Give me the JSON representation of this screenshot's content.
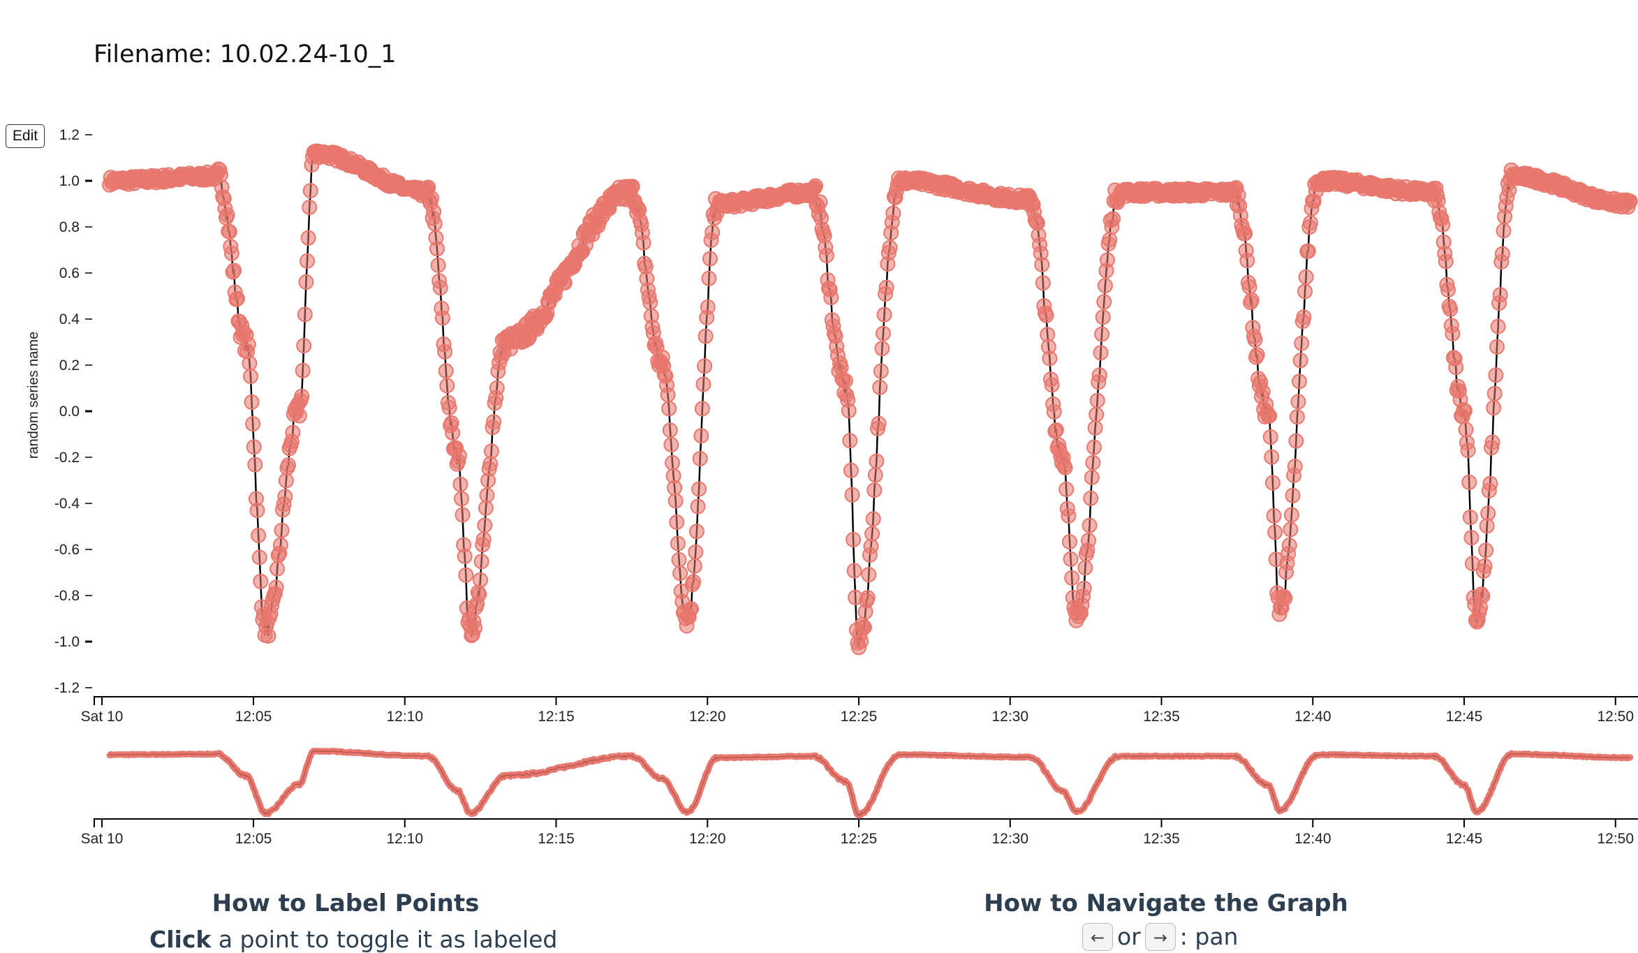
{
  "filename_label": "Filename: 10.02.24-10_1",
  "edit_label": "Edit",
  "help": {
    "label_title": "How to Label Points",
    "label_bold": "Click",
    "label_text": " a point to toggle it as labeled",
    "nav_title": "How to Navigate the Graph",
    "nav_key_left": "←",
    "nav_or": "or",
    "nav_key_right": "→",
    "nav_action": ": pan"
  },
  "colors": {
    "point": "#e8776e",
    "line": "#000000",
    "axis": "#000000"
  },
  "chart_data": [
    {
      "type": "scatter",
      "title": "",
      "xlabel": "",
      "ylabel": "random series name",
      "ylim": [
        -1.2,
        1.2
      ],
      "yticks": [
        "1.2",
        "1.0",
        "0.8",
        "0.6",
        "0.4",
        "0.2",
        "0.0",
        "-0.2",
        "-0.4",
        "-0.6",
        "-0.8",
        "-1.0",
        "-1.2"
      ],
      "xlim": [
        "12:00:15",
        "12:50:30"
      ],
      "xticks": [
        "Sat 10",
        "12:05",
        "12:10",
        "12:15",
        "12:20",
        "12:25",
        "12:30",
        "12:35",
        "12:40",
        "12:45",
        "12:50"
      ],
      "series_anchor_points": {
        "x": [
          "12:00:15",
          "12:03:50",
          "12:04:45",
          "12:05:25",
          "12:06:30",
          "12:07:00",
          "12:10:45",
          "12:11:45",
          "12:12:10",
          "12:13:20",
          "12:17:30",
          "12:18:30",
          "12:19:20",
          "12:20:20",
          "12:23:30",
          "12:24:35",
          "12:25:00",
          "12:26:20",
          "12:30:40",
          "12:31:45",
          "12:32:10",
          "12:33:35",
          "12:37:25",
          "12:38:30",
          "12:38:55",
          "12:40:10",
          "12:44:00",
          "12:45:00",
          "12:45:25",
          "12:46:35",
          "12:50:30"
        ],
        "y": [
          1.0,
          1.02,
          0.3,
          -0.95,
          0.0,
          1.12,
          0.95,
          -0.2,
          -0.95,
          0.3,
          0.95,
          0.2,
          -0.9,
          0.9,
          0.95,
          0.1,
          -1.0,
          1.0,
          0.92,
          -0.2,
          -0.9,
          0.95,
          0.95,
          0.0,
          -0.85,
          1.0,
          0.95,
          0.0,
          -0.9,
          1.02,
          0.9
        ]
      }
    },
    {
      "type": "line",
      "title": "",
      "role": "overview",
      "xticks": [
        "Sat 10",
        "12:05",
        "12:10",
        "12:15",
        "12:20",
        "12:25",
        "12:30",
        "12:35",
        "12:40",
        "12:45",
        "12:50"
      ]
    }
  ]
}
